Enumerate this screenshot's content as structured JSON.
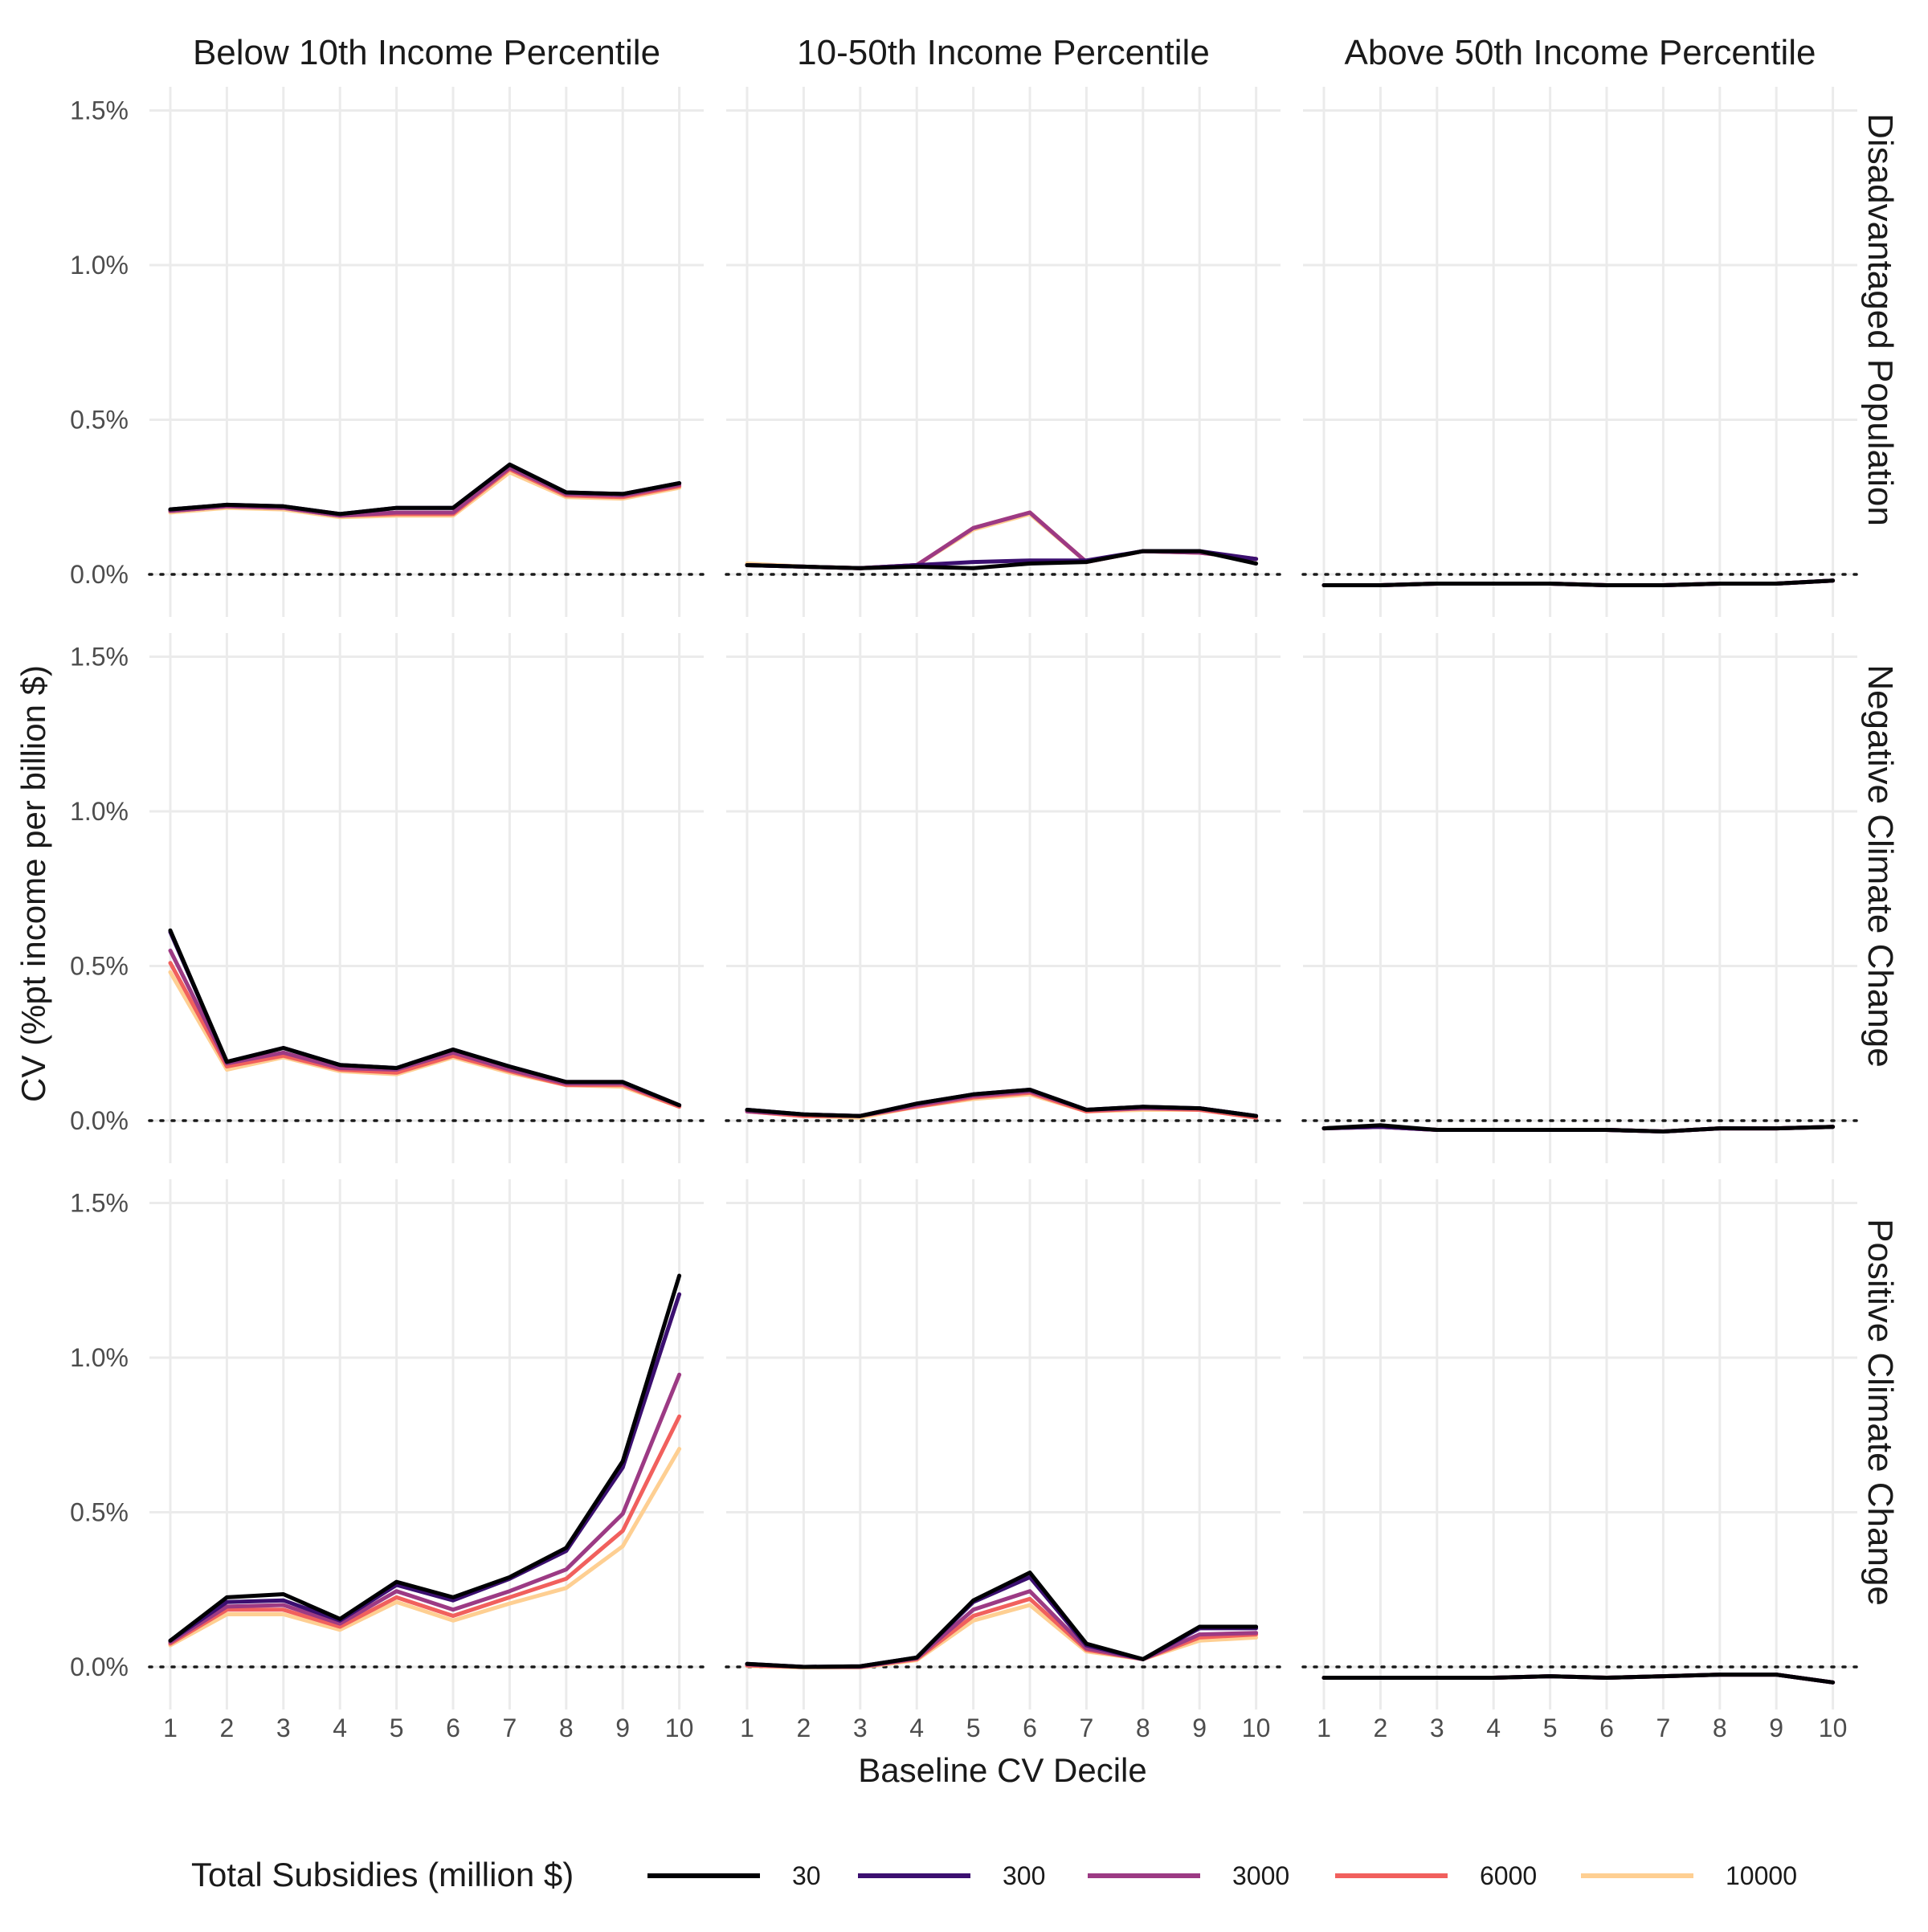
{
  "chart_data": {
    "type": "line",
    "xlabel": "Baseline CV Decile",
    "ylabel": "CV (%pt income per billion $)",
    "x": [
      1,
      2,
      3,
      4,
      5,
      6,
      7,
      8,
      9,
      10
    ],
    "x_tick_labels": [
      "1",
      "2",
      "3",
      "4",
      "5",
      "6",
      "7",
      "8",
      "9",
      "10"
    ],
    "ylim": [
      -0.1,
      1.6
    ],
    "y_ticks": [
      0,
      0.5,
      1.0,
      1.5
    ],
    "y_tick_labels": [
      "0.0%",
      "0.5%",
      "1.0%",
      "1.5%"
    ],
    "reference_line": {
      "y": 0,
      "style": "dotted"
    },
    "grid": true,
    "columns": [
      "Below 10th Income Percentile",
      "10-50th Income Percentile",
      "Above 50th Income Percentile"
    ],
    "rows": [
      "Disadvantaged Population",
      "Negative Climate Change",
      "Positive Climate Change"
    ],
    "legend": {
      "title": "Total Subsidies (million $)",
      "position": "bottom",
      "entries": [
        {
          "label": "30",
          "color": "#000004"
        },
        {
          "label": "300",
          "color": "#3b0f70"
        },
        {
          "label": "3000",
          "color": "#9c3a84"
        },
        {
          "label": "6000",
          "color": "#f1605d"
        },
        {
          "label": "10000",
          "color": "#fecf92"
        }
      ]
    },
    "panels": [
      {
        "row": 0,
        "col": 0,
        "series": [
          {
            "name": "30",
            "values": [
              0.21,
              0.225,
              0.22,
              0.195,
              0.215,
              0.215,
              0.355,
              0.265,
              0.26,
              0.295
            ]
          },
          {
            "name": "300",
            "values": [
              0.21,
              0.225,
              0.22,
              0.195,
              0.215,
              0.215,
              0.355,
              0.265,
              0.26,
              0.295
            ]
          },
          {
            "name": "3000",
            "values": [
              0.205,
              0.22,
              0.215,
              0.19,
              0.2,
              0.2,
              0.345,
              0.26,
              0.255,
              0.29
            ]
          },
          {
            "name": "6000",
            "values": [
              0.205,
              0.22,
              0.215,
              0.19,
              0.195,
              0.195,
              0.34,
              0.255,
              0.25,
              0.285
            ]
          },
          {
            "name": "10000",
            "values": [
              0.2,
              0.215,
              0.21,
              0.185,
              0.19,
              0.19,
              0.33,
              0.25,
              0.245,
              0.28
            ]
          }
        ]
      },
      {
        "row": 0,
        "col": 1,
        "series": [
          {
            "name": "30",
            "values": [
              0.03,
              0.025,
              0.02,
              0.025,
              0.02,
              0.035,
              0.04,
              0.075,
              0.075,
              0.035
            ]
          },
          {
            "name": "300",
            "values": [
              0.03,
              0.025,
              0.02,
              0.03,
              0.04,
              0.045,
              0.045,
              0.075,
              0.075,
              0.05
            ]
          },
          {
            "name": "3000",
            "values": [
              0.03,
              0.025,
              0.02,
              0.03,
              0.15,
              0.2,
              0.04,
              0.075,
              0.07,
              0.05
            ]
          },
          {
            "name": "6000",
            "values": [
              0.03,
              0.025,
              0.02,
              0.03,
              0.15,
              0.2,
              0.04,
              0.075,
              0.07,
              0.05
            ]
          },
          {
            "name": "10000",
            "values": [
              0.035,
              0.025,
              0.02,
              0.03,
              0.145,
              0.195,
              0.04,
              0.075,
              0.07,
              0.05
            ]
          }
        ]
      },
      {
        "row": 0,
        "col": 2,
        "series": [
          {
            "name": "30",
            "values": [
              -0.035,
              -0.035,
              -0.03,
              -0.03,
              -0.03,
              -0.035,
              -0.035,
              -0.03,
              -0.03,
              -0.02
            ]
          },
          {
            "name": "300",
            "values": [
              -0.035,
              -0.035,
              -0.03,
              -0.03,
              -0.03,
              -0.035,
              -0.035,
              -0.03,
              -0.03,
              -0.02
            ]
          },
          {
            "name": "3000",
            "values": [
              -0.035,
              -0.035,
              -0.03,
              -0.03,
              -0.03,
              -0.035,
              -0.035,
              -0.03,
              -0.03,
              -0.02
            ]
          },
          {
            "name": "6000",
            "values": [
              -0.035,
              -0.035,
              -0.03,
              -0.03,
              -0.03,
              -0.035,
              -0.035,
              -0.03,
              -0.03,
              -0.02
            ]
          },
          {
            "name": "10000",
            "values": [
              -0.035,
              -0.035,
              -0.03,
              -0.03,
              -0.03,
              -0.035,
              -0.035,
              -0.03,
              -0.03,
              -0.02
            ]
          }
        ]
      },
      {
        "row": 1,
        "col": 0,
        "series": [
          {
            "name": "30",
            "values": [
              0.615,
              0.19,
              0.235,
              0.18,
              0.17,
              0.23,
              0.175,
              0.125,
              0.125,
              0.05
            ]
          },
          {
            "name": "300",
            "values": [
              0.61,
              0.19,
              0.235,
              0.18,
              0.17,
              0.23,
              0.175,
              0.125,
              0.125,
              0.05
            ]
          },
          {
            "name": "3000",
            "values": [
              0.55,
              0.185,
              0.22,
              0.17,
              0.165,
              0.22,
              0.165,
              0.12,
              0.12,
              0.05
            ]
          },
          {
            "name": "6000",
            "values": [
              0.51,
              0.175,
              0.21,
              0.165,
              0.155,
              0.21,
              0.16,
              0.115,
              0.115,
              0.045
            ]
          },
          {
            "name": "10000",
            "values": [
              0.48,
              0.165,
              0.205,
              0.16,
              0.15,
              0.205,
              0.155,
              0.115,
              0.11,
              0.045
            ]
          }
        ]
      },
      {
        "row": 1,
        "col": 1,
        "series": [
          {
            "name": "30",
            "values": [
              0.035,
              0.02,
              0.015,
              0.055,
              0.085,
              0.1,
              0.035,
              0.045,
              0.04,
              0.015
            ]
          },
          {
            "name": "300",
            "values": [
              0.035,
              0.02,
              0.015,
              0.055,
              0.085,
              0.1,
              0.035,
              0.045,
              0.04,
              0.015
            ]
          },
          {
            "name": "3000",
            "values": [
              0.03,
              0.02,
              0.015,
              0.05,
              0.08,
              0.095,
              0.035,
              0.04,
              0.04,
              0.015
            ]
          },
          {
            "name": "6000",
            "values": [
              0.03,
              0.015,
              0.015,
              0.045,
              0.075,
              0.09,
              0.03,
              0.04,
              0.035,
              0.01
            ]
          },
          {
            "name": "10000",
            "values": [
              0.03,
              0.015,
              0.01,
              0.045,
              0.07,
              0.085,
              0.03,
              0.035,
              0.035,
              0.01
            ]
          }
        ]
      },
      {
        "row": 1,
        "col": 2,
        "series": [
          {
            "name": "30",
            "values": [
              -0.025,
              -0.015,
              -0.03,
              -0.03,
              -0.03,
              -0.03,
              -0.035,
              -0.025,
              -0.025,
              -0.02
            ]
          },
          {
            "name": "300",
            "values": [
              -0.025,
              -0.02,
              -0.03,
              -0.03,
              -0.03,
              -0.03,
              -0.035,
              -0.025,
              -0.025,
              -0.02
            ]
          },
          {
            "name": "3000",
            "values": [
              -0.025,
              -0.02,
              -0.03,
              -0.03,
              -0.03,
              -0.03,
              -0.035,
              -0.025,
              -0.025,
              -0.02
            ]
          },
          {
            "name": "6000",
            "values": [
              -0.025,
              -0.02,
              -0.03,
              -0.03,
              -0.03,
              -0.03,
              -0.035,
              -0.025,
              -0.025,
              -0.02
            ]
          },
          {
            "name": "10000",
            "values": [
              -0.025,
              -0.02,
              -0.03,
              -0.03,
              -0.03,
              -0.03,
              -0.035,
              -0.025,
              -0.025,
              -0.02
            ]
          }
        ]
      },
      {
        "row": 2,
        "col": 0,
        "series": [
          {
            "name": "30",
            "values": [
              0.085,
              0.225,
              0.235,
              0.155,
              0.275,
              0.225,
              0.29,
              0.385,
              0.665,
              1.265
            ]
          },
          {
            "name": "300",
            "values": [
              0.085,
              0.21,
              0.215,
              0.15,
              0.265,
              0.215,
              0.285,
              0.375,
              0.645,
              1.205
            ]
          },
          {
            "name": "3000",
            "values": [
              0.08,
              0.195,
              0.2,
              0.14,
              0.245,
              0.185,
              0.245,
              0.315,
              0.495,
              0.945
            ]
          },
          {
            "name": "6000",
            "values": [
              0.075,
              0.185,
              0.185,
              0.13,
              0.225,
              0.165,
              0.225,
              0.285,
              0.44,
              0.81
            ]
          },
          {
            "name": "10000",
            "values": [
              0.07,
              0.17,
              0.17,
              0.12,
              0.21,
              0.15,
              0.205,
              0.255,
              0.39,
              0.705
            ]
          }
        ]
      },
      {
        "row": 2,
        "col": 1,
        "series": [
          {
            "name": "30",
            "values": [
              0.01,
              0.0,
              0.002,
              0.03,
              0.215,
              0.305,
              0.075,
              0.025,
              0.13,
              0.13
            ]
          },
          {
            "name": "300",
            "values": [
              0.01,
              0.0,
              0.002,
              0.03,
              0.21,
              0.29,
              0.07,
              0.025,
              0.125,
              0.125
            ]
          },
          {
            "name": "3000",
            "values": [
              0.008,
              0.0,
              0.0,
              0.028,
              0.185,
              0.245,
              0.06,
              0.025,
              0.105,
              0.11
            ]
          },
          {
            "name": "6000",
            "values": [
              0.005,
              0.0,
              0.0,
              0.025,
              0.165,
              0.22,
              0.055,
              0.025,
              0.095,
              0.105
            ]
          },
          {
            "name": "10000",
            "values": [
              0.003,
              -0.002,
              -0.002,
              0.022,
              0.15,
              0.2,
              0.05,
              0.025,
              0.085,
              0.095
            ]
          }
        ]
      },
      {
        "row": 2,
        "col": 2,
        "series": [
          {
            "name": "30",
            "values": [
              -0.035,
              -0.035,
              -0.035,
              -0.035,
              -0.03,
              -0.035,
              -0.03,
              -0.025,
              -0.025,
              -0.05
            ]
          },
          {
            "name": "300",
            "values": [
              -0.035,
              -0.035,
              -0.035,
              -0.035,
              -0.03,
              -0.035,
              -0.03,
              -0.025,
              -0.025,
              -0.05
            ]
          },
          {
            "name": "3000",
            "values": [
              -0.035,
              -0.035,
              -0.035,
              -0.035,
              -0.03,
              -0.035,
              -0.03,
              -0.025,
              -0.025,
              -0.05
            ]
          },
          {
            "name": "6000",
            "values": [
              -0.035,
              -0.035,
              -0.035,
              -0.035,
              -0.03,
              -0.035,
              -0.03,
              -0.025,
              -0.025,
              -0.05
            ]
          },
          {
            "name": "10000",
            "values": [
              -0.035,
              -0.035,
              -0.035,
              -0.035,
              -0.03,
              -0.035,
              -0.03,
              -0.025,
              -0.025,
              -0.05
            ]
          }
        ]
      }
    ]
  }
}
